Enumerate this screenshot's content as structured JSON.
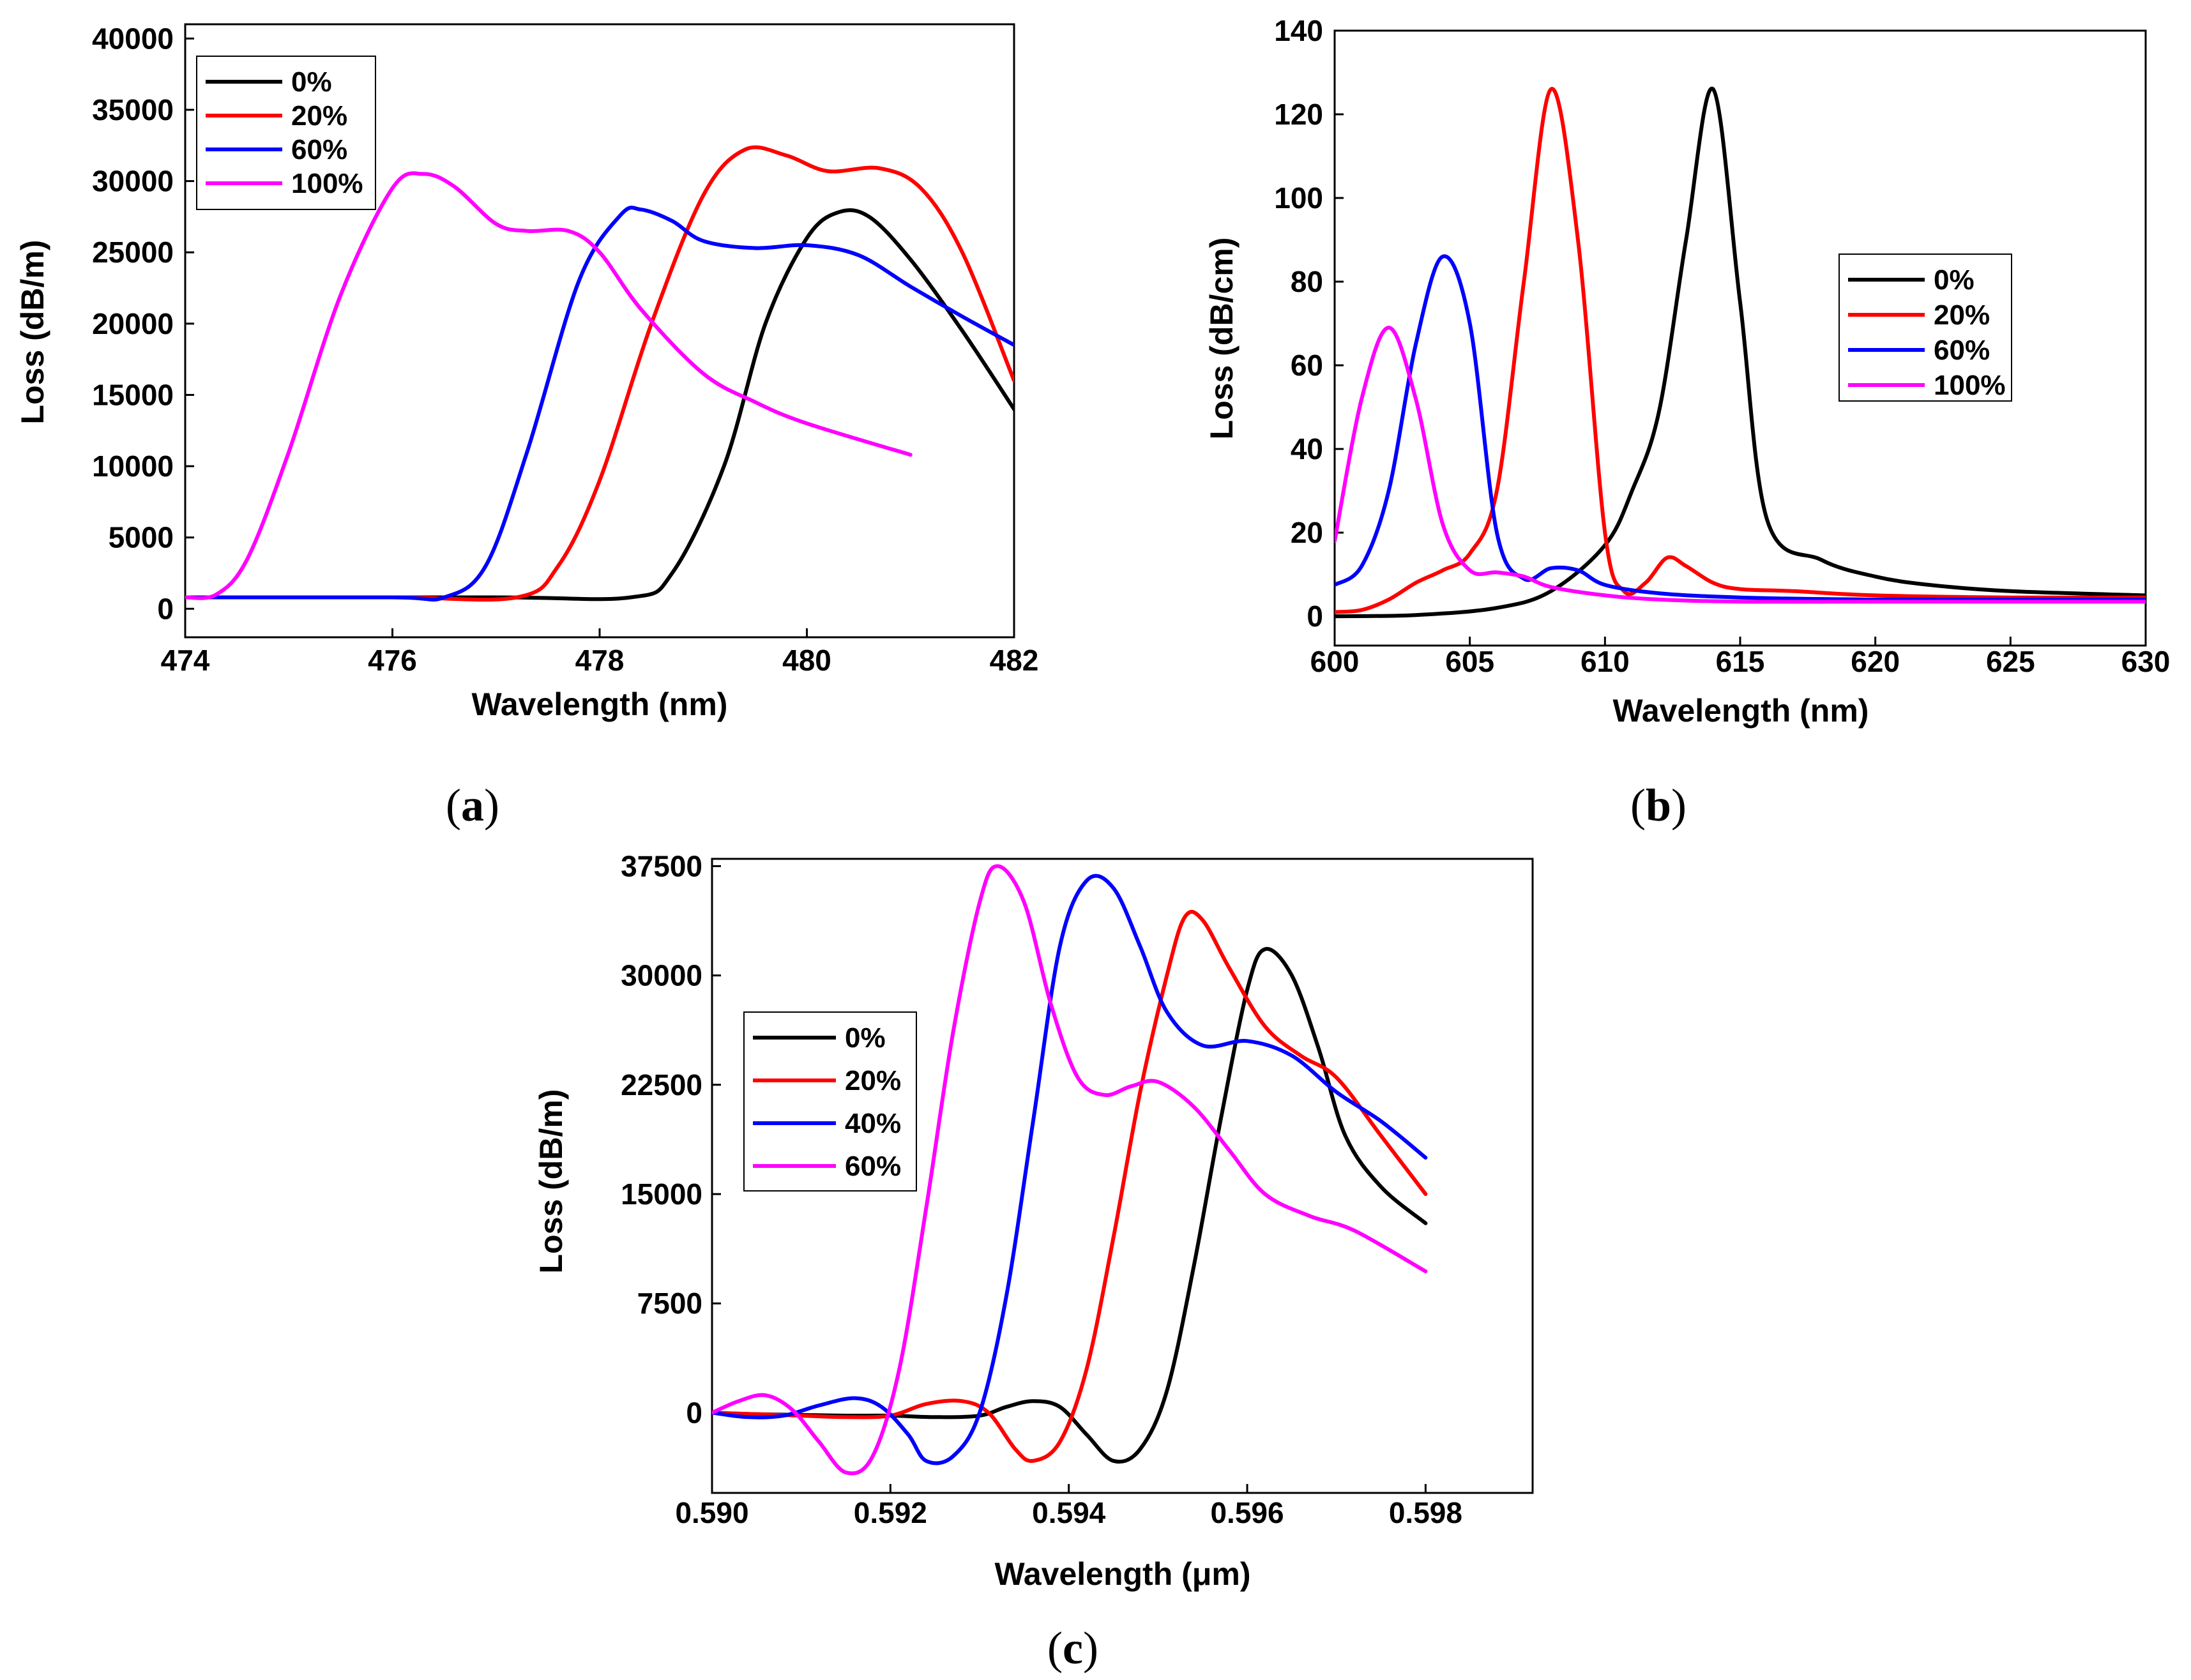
{
  "chart_data": [
    {
      "type": "line",
      "panel_label": "(a)",
      "panel_letter": "a",
      "xlabel": "Wavelength (nm)",
      "ylabel": "Loss (dB/m)",
      "xlim": [
        474,
        482
      ],
      "ylim": [
        -2000,
        41000
      ],
      "xticks": [
        474,
        476,
        478,
        480,
        482
      ],
      "yticks": [
        0,
        5000,
        10000,
        15000,
        20000,
        25000,
        30000,
        35000,
        40000
      ],
      "legend": "top-left",
      "series": [
        {
          "name": "0%",
          "color": "#000000",
          "points": [
            [
              474,
              800
            ],
            [
              477,
              800
            ],
            [
              478.3,
              800
            ],
            [
              478.7,
              2500
            ],
            [
              479.2,
              10000
            ],
            [
              479.6,
              20000
            ],
            [
              480,
              26000
            ],
            [
              480.3,
              27800
            ],
            [
              480.6,
              27500
            ],
            [
              481,
              24500
            ],
            [
              481.5,
              19500
            ],
            [
              482,
              14000
            ]
          ]
        },
        {
          "name": "20%",
          "color": "#ff0000",
          "points": [
            [
              474,
              800
            ],
            [
              476,
              800
            ],
            [
              477.2,
              800
            ],
            [
              477.6,
              3000
            ],
            [
              478,
              9000
            ],
            [
              478.5,
              20000
            ],
            [
              479,
              29000
            ],
            [
              479.4,
              32200
            ],
            [
              479.8,
              31800
            ],
            [
              480.2,
              30700
            ],
            [
              480.7,
              30900
            ],
            [
              481.1,
              29500
            ],
            [
              481.5,
              25000
            ],
            [
              482,
              16000
            ]
          ]
        },
        {
          "name": "60%",
          "color": "#0000ff",
          "points": [
            [
              474,
              800
            ],
            [
              476,
              800
            ],
            [
              476.5,
              800
            ],
            [
              476.9,
              3000
            ],
            [
              477.3,
              11000
            ],
            [
              477.8,
              23000
            ],
            [
              478.2,
              27600
            ],
            [
              478.4,
              28000
            ],
            [
              478.7,
              27200
            ],
            [
              479,
              25800
            ],
            [
              479.5,
              25300
            ],
            [
              480,
              25500
            ],
            [
              480.5,
              24800
            ],
            [
              481,
              22600
            ],
            [
              481.5,
              20500
            ],
            [
              482,
              18500
            ]
          ]
        },
        {
          "name": "100%",
          "color": "#ff00ff",
          "points": [
            [
              474,
              800
            ],
            [
              474.3,
              1000
            ],
            [
              474.6,
              3500
            ],
            [
              475,
              11000
            ],
            [
              475.5,
              22000
            ],
            [
              476,
              29500
            ],
            [
              476.3,
              30500
            ],
            [
              476.6,
              29600
            ],
            [
              477,
              27000
            ],
            [
              477.3,
              26500
            ],
            [
              477.7,
              26500
            ],
            [
              478,
              25000
            ],
            [
              478.4,
              21000
            ],
            [
              479,
              16500
            ],
            [
              479.5,
              14500
            ],
            [
              480,
              13000
            ],
            [
              481,
              10800
            ]
          ]
        }
      ]
    },
    {
      "type": "line",
      "panel_label": "(b)",
      "panel_letter": "b",
      "xlabel": "Wavelength (nm)",
      "ylabel": "Loss (dB/cm)",
      "xlim": [
        600,
        630
      ],
      "ylim": [
        -7,
        140
      ],
      "xticks": [
        600,
        605,
        610,
        615,
        620,
        625,
        630
      ],
      "yticks": [
        0,
        20,
        40,
        60,
        80,
        100,
        120,
        140
      ],
      "legend": "right",
      "series": [
        {
          "name": "0%",
          "color": "#000000",
          "points": [
            [
              600,
              0
            ],
            [
              603,
              0.3
            ],
            [
              606,
              2
            ],
            [
              608,
              6
            ],
            [
              610,
              17
            ],
            [
              611,
              30
            ],
            [
              612,
              49
            ],
            [
              613,
              90
            ],
            [
              614,
              126
            ],
            [
              615,
              75
            ],
            [
              616,
              23
            ],
            [
              618,
              13.5
            ],
            [
              620,
              9.5
            ],
            [
              622,
              7.5
            ],
            [
              625,
              6
            ],
            [
              630,
              5
            ]
          ]
        },
        {
          "name": "20%",
          "color": "#ff0000",
          "points": [
            [
              600,
              1
            ],
            [
              601,
              1.5
            ],
            [
              602,
              4
            ],
            [
              603,
              8
            ],
            [
              604,
              11
            ],
            [
              605,
              15
            ],
            [
              606,
              30
            ],
            [
              607,
              80
            ],
            [
              608,
              126
            ],
            [
              609,
              90
            ],
            [
              610,
              20
            ],
            [
              610.7,
              6
            ],
            [
              611.5,
              8
            ],
            [
              612.3,
              14
            ],
            [
              613,
              12
            ],
            [
              614,
              8
            ],
            [
              615,
              6.5
            ],
            [
              617,
              6
            ],
            [
              620,
              5
            ],
            [
              625,
              4.5
            ],
            [
              630,
              4.5
            ]
          ]
        },
        {
          "name": "60%",
          "color": "#0000ff",
          "points": [
            [
              600,
              7.5
            ],
            [
              601,
              12
            ],
            [
              602,
              30
            ],
            [
              603,
              65
            ],
            [
              604,
              86
            ],
            [
              605,
              70
            ],
            [
              606,
              20
            ],
            [
              607,
              9
            ],
            [
              608,
              11.5
            ],
            [
              609,
              11
            ],
            [
              610,
              7.5
            ],
            [
              612,
              5.5
            ],
            [
              615,
              4.5
            ],
            [
              620,
              4
            ],
            [
              630,
              4
            ]
          ]
        },
        {
          "name": "100%",
          "color": "#ff00ff",
          "points": [
            [
              600,
              18
            ],
            [
              601,
              52
            ],
            [
              602,
              69
            ],
            [
              603,
              52
            ],
            [
              604,
              22
            ],
            [
              605,
              11
            ],
            [
              606,
              10.5
            ],
            [
              607,
              9.5
            ],
            [
              608,
              7
            ],
            [
              610,
              5
            ],
            [
              612,
              4
            ],
            [
              615,
              3.5
            ],
            [
              620,
              3.5
            ],
            [
              630,
              3.5
            ]
          ]
        }
      ]
    },
    {
      "type": "line",
      "panel_label": "(c)",
      "panel_letter": "c",
      "xlabel": "Wavelength (μm)",
      "ylabel": "Loss (dB/m)",
      "xlim": [
        0.59,
        0.5992
      ],
      "ylim": [
        -5500,
        38000
      ],
      "xticks": [
        0.59,
        0.592,
        0.594,
        0.596,
        0.598
      ],
      "xticklabels": [
        "0.590",
        "0.592",
        "0.594",
        "0.596",
        "0.598"
      ],
      "yticks": [
        0,
        7500,
        15000,
        22500,
        30000,
        37500
      ],
      "legend": "top-left",
      "series": [
        {
          "name": "0%",
          "color": "#000000",
          "points": [
            [
              0.59,
              0
            ],
            [
              0.5905,
              -100
            ],
            [
              0.591,
              -150
            ],
            [
              0.5915,
              -200
            ],
            [
              0.592,
              -200
            ],
            [
              0.5925,
              -300
            ],
            [
              0.593,
              -200
            ],
            [
              0.5933,
              400
            ],
            [
              0.5936,
              800
            ],
            [
              0.5939,
              400
            ],
            [
              0.5942,
              -1500
            ],
            [
              0.5945,
              -3300
            ],
            [
              0.5948,
              -2500
            ],
            [
              0.5951,
              1500
            ],
            [
              0.5954,
              10000
            ],
            [
              0.5957,
              20000
            ],
            [
              0.596,
              29000
            ],
            [
              0.5962,
              31800
            ],
            [
              0.5965,
              30000
            ],
            [
              0.5968,
              25000
            ],
            [
              0.5971,
              19000
            ],
            [
              0.5975,
              15500
            ],
            [
              0.598,
              13000
            ]
          ]
        },
        {
          "name": "20%",
          "color": "#ff0000",
          "points": [
            [
              0.59,
              0
            ],
            [
              0.5905,
              -100
            ],
            [
              0.591,
              -200
            ],
            [
              0.5915,
              -300
            ],
            [
              0.592,
              -200
            ],
            [
              0.5924,
              600
            ],
            [
              0.5928,
              800
            ],
            [
              0.5931,
              0
            ],
            [
              0.5934,
              -2500
            ],
            [
              0.5936,
              -3300
            ],
            [
              0.5939,
              -2000
            ],
            [
              0.5942,
              3000
            ],
            [
              0.5945,
              12000
            ],
            [
              0.5948,
              22000
            ],
            [
              0.5951,
              30000
            ],
            [
              0.5953,
              34000
            ],
            [
              0.5955,
              33800
            ],
            [
              0.5958,
              30500
            ],
            [
              0.5962,
              26500
            ],
            [
              0.5966,
              24500
            ],
            [
              0.597,
              23000
            ],
            [
              0.5975,
              19000
            ],
            [
              0.598,
              15000
            ]
          ]
        },
        {
          "name": "40%",
          "color": "#0000ff",
          "points": [
            [
              0.59,
              0
            ],
            [
              0.5904,
              -300
            ],
            [
              0.5908,
              -200
            ],
            [
              0.5912,
              500
            ],
            [
              0.5916,
              1000
            ],
            [
              0.5919,
              400
            ],
            [
              0.5922,
              -1500
            ],
            [
              0.5924,
              -3300
            ],
            [
              0.5927,
              -3000
            ],
            [
              0.593,
              0
            ],
            [
              0.5933,
              8000
            ],
            [
              0.5936,
              20000
            ],
            [
              0.5939,
              32000
            ],
            [
              0.5942,
              36500
            ],
            [
              0.5945,
              36000
            ],
            [
              0.5948,
              32000
            ],
            [
              0.5951,
              27500
            ],
            [
              0.5955,
              25200
            ],
            [
              0.596,
              25500
            ],
            [
              0.5965,
              24500
            ],
            [
              0.597,
              22000
            ],
            [
              0.5975,
              20000
            ],
            [
              0.598,
              17500
            ]
          ]
        },
        {
          "name": "60%",
          "color": "#ff00ff",
          "points": [
            [
              0.59,
              0
            ],
            [
              0.5903,
              800
            ],
            [
              0.5906,
              1200
            ],
            [
              0.5909,
              200
            ],
            [
              0.5912,
              -2000
            ],
            [
              0.5915,
              -4100
            ],
            [
              0.5918,
              -3000
            ],
            [
              0.5921,
              3000
            ],
            [
              0.5924,
              14000
            ],
            [
              0.5927,
              26000
            ],
            [
              0.593,
              35000
            ],
            [
              0.5932,
              37500
            ],
            [
              0.5935,
              35000
            ],
            [
              0.5938,
              28000
            ],
            [
              0.5941,
              23000
            ],
            [
              0.5944,
              21800
            ],
            [
              0.5947,
              22400
            ],
            [
              0.595,
              22700
            ],
            [
              0.5954,
              21000
            ],
            [
              0.5958,
              18000
            ],
            [
              0.5962,
              15000
            ],
            [
              0.5967,
              13500
            ],
            [
              0.5972,
              12500
            ],
            [
              0.598,
              9700
            ]
          ]
        }
      ]
    }
  ]
}
